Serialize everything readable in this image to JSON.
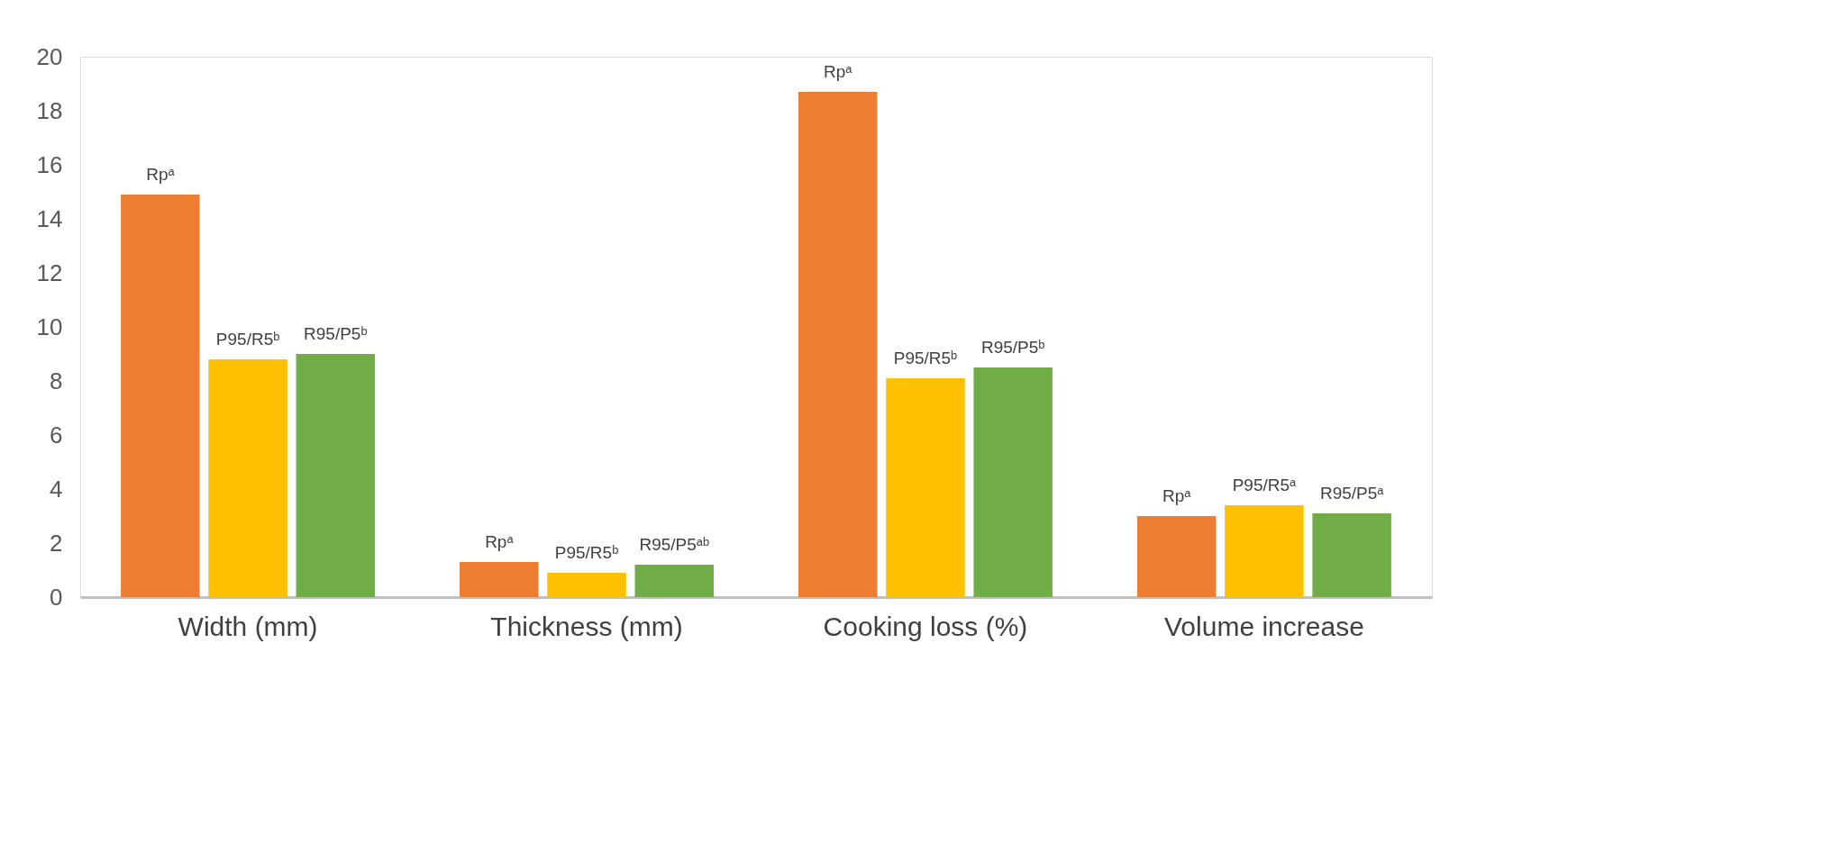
{
  "chart_data": {
    "type": "bar",
    "categories": [
      "Width (mm)",
      "Thickness (mm)",
      "Cooking loss (%)",
      "Volume increase"
    ],
    "series": [
      {
        "color": "#ed7d31",
        "values": [
          14.9,
          1.3,
          18.7,
          3.0
        ],
        "value_labels": [
          "Rpᵃ",
          "Rpᵃ",
          "Rpᵃ",
          "Rpᵃ"
        ]
      },
      {
        "color": "#ffc000",
        "values": [
          8.8,
          0.9,
          8.1,
          3.4
        ],
        "value_labels": [
          "P95/R5ᵇ",
          "P95/R5ᵇ",
          "P95/R5ᵇ",
          "P95/R5ᵃ"
        ]
      },
      {
        "color": "#70ad47",
        "values": [
          9.0,
          1.2,
          8.5,
          3.1
        ],
        "value_labels": [
          "R95/P5ᵇ",
          "R95/P5ᵃᵇ",
          "R95/P5ᵇ",
          "R95/P5ᵃ"
        ]
      }
    ],
    "ylim": [
      0,
      20
    ],
    "yticks": [
      0,
      2,
      4,
      6,
      8,
      10,
      12,
      14,
      16,
      18,
      20
    ],
    "grid": false,
    "legend": false
  }
}
